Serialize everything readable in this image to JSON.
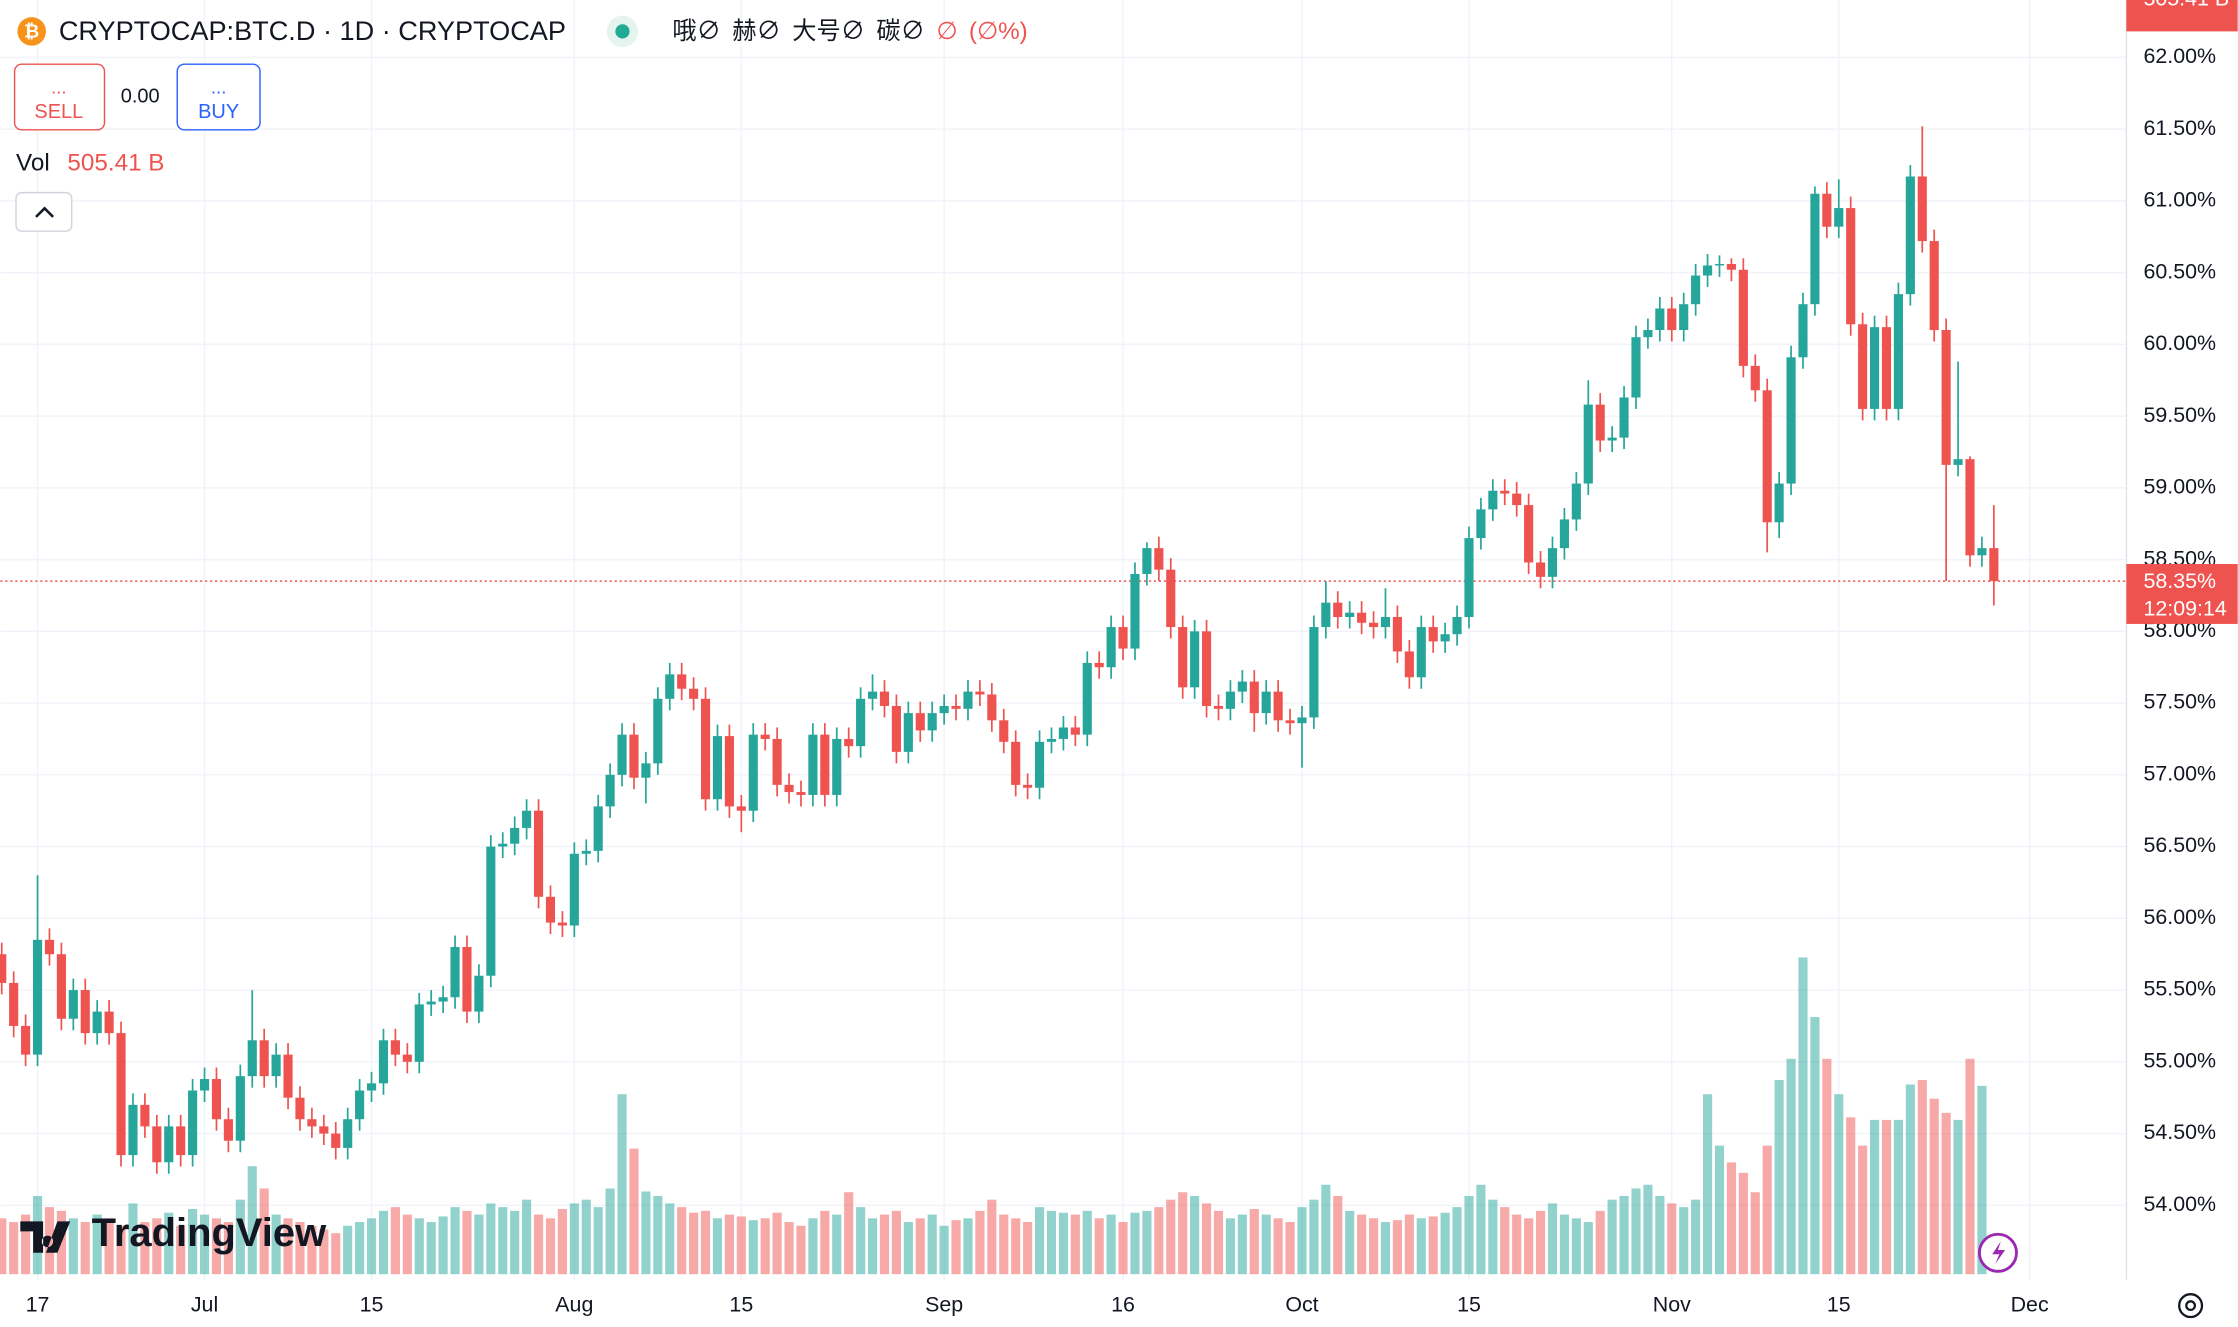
{
  "header": {
    "symbol": "CRYPTOCAP:BTC.D · 1D · CRYPTOCAP",
    "ohlc": {
      "o": "哦∅",
      "h": "赫∅",
      "l": "大号∅",
      "c": "碳∅",
      "change": "∅",
      "change_pct": "(∅%)"
    },
    "sell_dots": "...",
    "sell": "SELL",
    "spread": "0.00",
    "buy_dots": "...",
    "buy": "BUY",
    "vol_label": "Vol",
    "vol_value": "505.41 B",
    "brand": "TradingView"
  },
  "chart_data": {
    "type": "candlestick",
    "up_color": "#26a69a",
    "down_color": "#ef5350",
    "open": [
      55.75,
      55.55,
      55.25,
      55.05,
      55.85,
      55.75,
      55.3,
      55.5,
      55.2,
      55.35,
      55.2,
      54.35,
      54.7,
      54.55,
      54.3,
      54.55,
      54.35,
      54.8,
      54.88,
      54.6,
      54.45,
      54.9,
      55.15,
      54.9,
      55.05,
      54.75,
      54.6,
      54.55,
      54.5,
      54.4,
      54.6,
      54.8,
      54.85,
      55.15,
      55.05,
      55.0,
      55.4,
      55.42,
      55.45,
      55.8,
      55.35,
      55.6,
      56.5,
      56.52,
      56.63,
      56.75,
      56.15,
      55.97,
      55.95,
      56.45,
      56.47,
      56.78,
      57.0,
      57.28,
      56.98,
      57.08,
      57.53,
      57.7,
      57.6,
      57.53,
      56.83,
      57.27,
      56.78,
      56.75,
      57.28,
      57.25,
      56.93,
      56.88,
      56.86,
      57.28,
      56.86,
      57.25,
      57.2,
      57.53,
      57.58,
      57.48,
      57.16,
      57.43,
      57.31,
      57.43,
      57.48,
      57.46,
      57.58,
      57.56,
      57.38,
      57.23,
      56.93,
      56.91,
      57.23,
      57.25,
      57.33,
      57.28,
      57.78,
      57.75,
      58.03,
      57.88,
      58.4,
      58.58,
      58.43,
      58.03,
      57.61,
      58.0,
      57.48,
      57.46,
      57.58,
      57.65,
      57.43,
      57.58,
      57.38,
      57.36,
      57.4,
      58.03,
      58.2,
      58.1,
      58.13,
      58.06,
      58.03,
      58.1,
      57.86,
      57.68,
      58.03,
      57.93,
      57.98,
      58.1,
      58.65,
      58.85,
      58.98,
      58.96,
      58.88,
      58.48,
      58.38,
      58.58,
      58.78,
      59.03,
      59.58,
      59.33,
      59.35,
      59.63,
      60.05,
      60.1,
      60.25,
      60.1,
      60.28,
      60.48,
      60.55,
      60.56,
      60.52,
      59.85,
      59.68,
      58.76,
      59.03,
      59.91,
      60.28,
      61.05,
      60.82,
      60.95,
      60.14,
      59.55,
      60.12,
      59.55,
      60.35,
      61.17,
      60.72,
      60.1,
      59.16,
      59.2,
      58.53,
      58.58
    ],
    "high": [
      55.83,
      55.63,
      55.33,
      56.3,
      55.93,
      55.83,
      55.58,
      55.58,
      55.43,
      55.43,
      55.28,
      54.78,
      54.78,
      54.63,
      54.63,
      54.63,
      54.88,
      54.96,
      54.96,
      54.68,
      54.98,
      55.5,
      55.23,
      55.13,
      55.13,
      54.83,
      54.68,
      54.63,
      54.58,
      54.68,
      54.88,
      54.93,
      55.23,
      55.23,
      55.13,
      55.48,
      55.5,
      55.53,
      55.88,
      55.88,
      55.68,
      56.58,
      56.6,
      56.71,
      56.83,
      56.83,
      56.23,
      56.05,
      56.53,
      56.55,
      56.86,
      57.08,
      57.36,
      57.36,
      57.16,
      57.61,
      57.78,
      57.78,
      57.68,
      57.61,
      57.35,
      57.35,
      56.86,
      57.36,
      57.36,
      57.33,
      57.01,
      56.96,
      57.36,
      57.36,
      57.33,
      57.33,
      57.61,
      57.7,
      57.66,
      57.56,
      57.51,
      57.51,
      57.51,
      57.56,
      57.56,
      57.66,
      57.66,
      57.64,
      57.46,
      57.31,
      57.01,
      57.31,
      57.33,
      57.41,
      57.41,
      57.86,
      57.86,
      58.11,
      58.11,
      58.48,
      58.62,
      58.66,
      58.51,
      58.11,
      58.08,
      58.08,
      57.56,
      57.66,
      57.73,
      57.73,
      57.66,
      57.66,
      57.46,
      57.48,
      58.11,
      58.35,
      58.28,
      58.21,
      58.21,
      58.14,
      58.3,
      58.18,
      57.94,
      58.11,
      58.11,
      58.06,
      58.18,
      58.73,
      58.93,
      59.06,
      59.06,
      59.04,
      58.96,
      58.56,
      58.66,
      58.86,
      59.11,
      59.75,
      59.66,
      59.43,
      59.71,
      60.13,
      60.18,
      60.33,
      60.33,
      60.36,
      60.56,
      60.63,
      60.62,
      60.6,
      60.6,
      59.93,
      59.76,
      59.11,
      59.99,
      60.36,
      61.1,
      61.13,
      61.15,
      61.03,
      60.22,
      60.2,
      60.2,
      60.43,
      61.25,
      61.52,
      60.8,
      60.18,
      59.88,
      59.22,
      58.66,
      58.88
    ],
    "low": [
      55.47,
      55.17,
      54.97,
      54.97,
      55.67,
      55.22,
      55.22,
      55.12,
      55.12,
      55.12,
      54.27,
      54.27,
      54.47,
      54.22,
      54.22,
      54.27,
      54.27,
      54.72,
      54.52,
      54.37,
      54.37,
      54.82,
      54.82,
      54.82,
      54.67,
      54.52,
      54.47,
      54.42,
      54.32,
      54.32,
      54.52,
      54.72,
      54.77,
      54.97,
      54.92,
      54.92,
      55.32,
      55.34,
      55.37,
      55.27,
      55.27,
      55.52,
      56.42,
      56.44,
      56.55,
      56.07,
      55.89,
      55.87,
      55.87,
      56.37,
      56.39,
      56.7,
      56.92,
      56.9,
      56.8,
      57.0,
      57.45,
      57.52,
      57.45,
      56.75,
      56.75,
      56.7,
      56.6,
      56.67,
      57.17,
      56.85,
      56.8,
      56.78,
      56.78,
      56.78,
      56.78,
      57.12,
      57.12,
      57.45,
      57.4,
      57.08,
      57.08,
      57.23,
      57.23,
      57.35,
      57.38,
      57.38,
      57.48,
      57.3,
      57.15,
      56.85,
      56.83,
      56.83,
      57.15,
      57.17,
      57.2,
      57.2,
      57.67,
      57.67,
      57.8,
      57.8,
      58.32,
      58.35,
      57.95,
      57.53,
      57.53,
      57.4,
      57.38,
      57.38,
      57.5,
      57.3,
      57.35,
      57.3,
      57.28,
      57.05,
      57.32,
      57.95,
      58.02,
      58.02,
      57.98,
      57.95,
      57.95,
      57.78,
      57.6,
      57.6,
      57.85,
      57.85,
      57.9,
      58.02,
      58.57,
      58.77,
      58.88,
      58.8,
      58.4,
      58.3,
      58.3,
      58.5,
      58.7,
      58.95,
      59.25,
      59.25,
      59.27,
      59.55,
      59.97,
      60.02,
      60.02,
      60.02,
      60.2,
      60.4,
      60.47,
      60.44,
      59.77,
      59.6,
      58.55,
      58.65,
      58.95,
      59.83,
      60.2,
      60.74,
      60.74,
      60.06,
      59.47,
      59.47,
      59.47,
      59.47,
      60.27,
      60.64,
      60.02,
      58.35,
      59.08,
      58.45,
      58.45,
      58.18
    ],
    "close": [
      55.55,
      55.25,
      55.05,
      55.85,
      55.75,
      55.3,
      55.5,
      55.2,
      55.35,
      55.2,
      54.35,
      54.7,
      54.55,
      54.3,
      54.55,
      54.35,
      54.8,
      54.88,
      54.6,
      54.45,
      54.9,
      55.15,
      54.9,
      55.05,
      54.75,
      54.6,
      54.55,
      54.5,
      54.4,
      54.6,
      54.8,
      54.85,
      55.15,
      55.05,
      55.0,
      55.4,
      55.42,
      55.45,
      55.8,
      55.35,
      55.6,
      56.5,
      56.52,
      56.63,
      56.75,
      56.15,
      55.97,
      55.95,
      56.45,
      56.47,
      56.78,
      57.0,
      57.28,
      56.98,
      57.08,
      57.53,
      57.7,
      57.6,
      57.53,
      56.83,
      57.27,
      56.78,
      56.75,
      57.28,
      57.25,
      56.93,
      56.88,
      56.86,
      57.28,
      56.86,
      57.25,
      57.2,
      57.53,
      57.58,
      57.48,
      57.16,
      57.43,
      57.31,
      57.43,
      57.48,
      57.46,
      57.58,
      57.56,
      57.38,
      57.23,
      56.93,
      56.91,
      57.23,
      57.25,
      57.33,
      57.28,
      57.78,
      57.75,
      58.03,
      57.88,
      58.4,
      58.58,
      58.43,
      58.03,
      57.61,
      58.0,
      57.48,
      57.46,
      57.58,
      57.65,
      57.43,
      57.58,
      57.38,
      57.36,
      57.4,
      58.03,
      58.2,
      58.1,
      58.13,
      58.06,
      58.03,
      58.1,
      57.86,
      57.68,
      58.03,
      57.93,
      57.98,
      58.1,
      58.65,
      58.85,
      58.98,
      58.96,
      58.88,
      58.48,
      58.38,
      58.58,
      58.78,
      59.03,
      59.58,
      59.33,
      59.35,
      59.63,
      60.05,
      60.1,
      60.25,
      60.1,
      60.28,
      60.48,
      60.55,
      60.56,
      60.52,
      59.85,
      59.68,
      58.76,
      59.03,
      59.91,
      60.28,
      61.05,
      60.82,
      60.95,
      60.14,
      59.55,
      60.12,
      59.55,
      60.35,
      61.17,
      60.72,
      60.1,
      59.16,
      59.2,
      58.53,
      58.58,
      58.35
    ],
    "volume": {
      "name": "Vol",
      "values": [
        150,
        140,
        160,
        210,
        180,
        170,
        150,
        140,
        160,
        150,
        130,
        190,
        140,
        150,
        165,
        130,
        175,
        160,
        150,
        140,
        200,
        290,
        230,
        160,
        150,
        140,
        130,
        120,
        110,
        130,
        140,
        150,
        170,
        180,
        160,
        150,
        140,
        155,
        180,
        170,
        160,
        190,
        180,
        170,
        200,
        160,
        150,
        175,
        190,
        200,
        180,
        230,
        483,
        337,
        222,
        210,
        190,
        180,
        165,
        170,
        150,
        160,
        155,
        145,
        150,
        165,
        140,
        130,
        150,
        170,
        160,
        220,
        180,
        150,
        160,
        170,
        140,
        150,
        160,
        130,
        145,
        150,
        170,
        200,
        160,
        150,
        140,
        180,
        170,
        165,
        160,
        170,
        150,
        160,
        140,
        165,
        170,
        180,
        200,
        220,
        210,
        190,
        170,
        150,
        160,
        175,
        160,
        150,
        140,
        180,
        200,
        240,
        210,
        170,
        160,
        150,
        140,
        145,
        160,
        150,
        155,
        165,
        180,
        210,
        240,
        200,
        180,
        160,
        150,
        170,
        190,
        160,
        150,
        140,
        170,
        200,
        210,
        230,
        240,
        210,
        190,
        180,
        200,
        483,
        345,
        300,
        272,
        220,
        345,
        521,
        578,
        850,
        690,
        578,
        483,
        421,
        345,
        414,
        414,
        414,
        509,
        521,
        471,
        433,
        414,
        578,
        505.41
      ]
    },
    "last_price_label": "58.35%",
    "countdown": "12:09:14",
    "ylim": [
      53.48,
      62.4
    ],
    "yticks": [
      {
        "value": 54,
        "label": "54.00%"
      },
      {
        "value": 54.5,
        "label": "54.50%"
      },
      {
        "value": 55,
        "label": "55.00%"
      },
      {
        "value": 55.5,
        "label": "55.50%"
      },
      {
        "value": 56,
        "label": "56.00%"
      },
      {
        "value": 56.5,
        "label": "56.50%"
      },
      {
        "value": 57,
        "label": "57.00%"
      },
      {
        "value": 57.5,
        "label": "57.50%"
      },
      {
        "value": 58,
        "label": "58.00%"
      },
      {
        "value": 58.5,
        "label": "58.50%"
      },
      {
        "value": 59,
        "label": "59.00%"
      },
      {
        "value": 59.5,
        "label": "59.50%"
      },
      {
        "value": 60,
        "label": "60.00%"
      },
      {
        "value": 60.5,
        "label": "60.50%"
      },
      {
        "value": 61,
        "label": "61.00%"
      },
      {
        "value": 61.5,
        "label": "61.50%"
      },
      {
        "value": 62,
        "label": "62.00%"
      }
    ],
    "xticks": [
      {
        "value": 3,
        "label": "17"
      },
      {
        "value": 17,
        "label": "Jul"
      },
      {
        "value": 31,
        "label": "15"
      },
      {
        "value": 48,
        "label": "Aug"
      },
      {
        "value": 62,
        "label": "15"
      },
      {
        "value": 79,
        "label": "Sep"
      },
      {
        "value": 94,
        "label": "16"
      },
      {
        "value": 109,
        "label": "Oct"
      },
      {
        "value": 123,
        "label": "15"
      },
      {
        "value": 140,
        "label": "Nov"
      },
      {
        "value": 154,
        "label": "15"
      },
      {
        "value": 170,
        "label": "Dec"
      }
    ],
    "grid": true
  }
}
